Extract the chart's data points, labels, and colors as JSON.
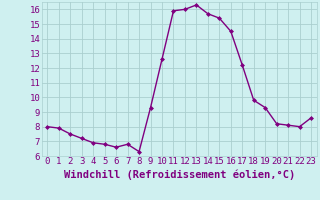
{
  "hours": [
    0,
    1,
    2,
    3,
    4,
    5,
    6,
    7,
    8,
    9,
    10,
    11,
    12,
    13,
    14,
    15,
    16,
    17,
    18,
    19,
    20,
    21,
    22,
    23
  ],
  "values": [
    8.0,
    7.9,
    7.5,
    7.2,
    6.9,
    6.8,
    6.6,
    6.8,
    6.3,
    9.3,
    12.6,
    15.9,
    16.0,
    16.3,
    15.7,
    15.4,
    14.5,
    12.2,
    9.8,
    9.3,
    8.2,
    8.1,
    8.0,
    8.6
  ],
  "line_color": "#800080",
  "marker": "D",
  "marker_size": 2.0,
  "background_color": "#cff0f0",
  "grid_color": "#aacfcf",
  "xlabel": "Windchill (Refroidissement éolien,°C)",
  "xlim": [
    -0.5,
    23.5
  ],
  "ylim": [
    6,
    16.5
  ],
  "yticks": [
    6,
    7,
    8,
    9,
    10,
    11,
    12,
    13,
    14,
    15,
    16
  ],
  "xticks": [
    0,
    1,
    2,
    3,
    4,
    5,
    6,
    7,
    8,
    9,
    10,
    11,
    12,
    13,
    14,
    15,
    16,
    17,
    18,
    19,
    20,
    21,
    22,
    23
  ],
  "tick_label_fontsize": 6.5,
  "xlabel_fontsize": 7.5,
  "linewidth": 1.0
}
